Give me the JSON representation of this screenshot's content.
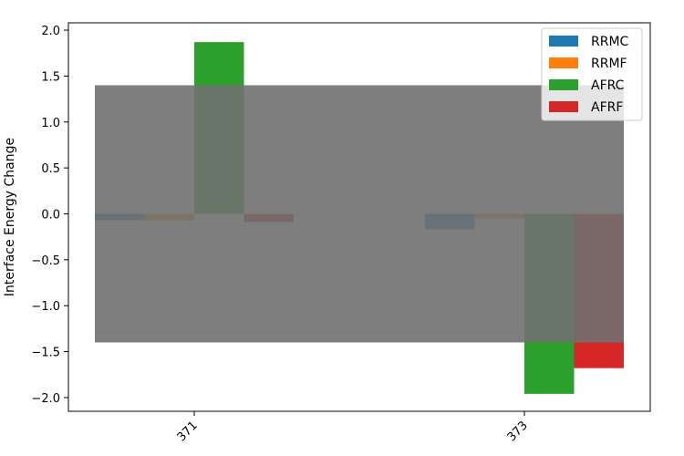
{
  "chart_data": {
    "type": "bar",
    "categories": [
      "371",
      "373"
    ],
    "ylabel": "Interface Energy Change",
    "xlabel": "",
    "ylim": [
      -2.15,
      2.08
    ],
    "yticks": [
      -2.0,
      -1.5,
      -1.0,
      -0.5,
      0.0,
      0.5,
      1.0,
      1.5,
      2.0
    ],
    "ytick_labels": [
      "−2.0",
      "−1.5",
      "−1.0",
      "−0.5",
      "0.0",
      "0.5",
      "1.0",
      "1.5",
      "2.0"
    ],
    "grid": false,
    "legend": "top-right",
    "series": [
      {
        "name": "RRMC",
        "color": "#1f77b4",
        "values": [
          -0.07,
          -0.17
        ]
      },
      {
        "name": "RRMF",
        "color": "#ff7f0e",
        "values": [
          -0.07,
          -0.05
        ]
      },
      {
        "name": "AFRC",
        "color": "#2ca02c",
        "values": [
          1.87,
          -1.96
        ]
      },
      {
        "name": "AFRF",
        "color": "#d62728",
        "values": [
          -0.09,
          -1.68
        ]
      }
    ],
    "overlay_band": {
      "y_range": [
        -1.4,
        1.4
      ],
      "color": "#707070"
    }
  }
}
